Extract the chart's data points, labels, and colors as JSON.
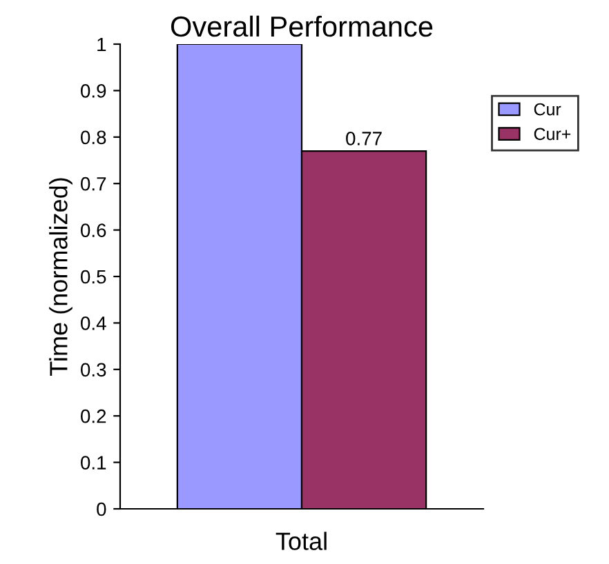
{
  "chart_data": {
    "type": "bar",
    "title": "Overall Performance",
    "ylabel": "Time (normalized)",
    "categories": [
      "Total"
    ],
    "series": [
      {
        "name": "Cur",
        "color": "#9999ff",
        "values": [
          1
        ]
      },
      {
        "name": "Cur+",
        "color": "#993366",
        "values": [
          0.77
        ],
        "value_labels": [
          "0.77"
        ]
      }
    ],
    "ylim": [
      0,
      1
    ],
    "yticks": [
      0,
      0.1,
      0.2,
      0.3,
      0.4,
      0.5,
      0.6,
      0.7,
      0.8,
      0.9,
      1
    ],
    "grid": false,
    "legend": "right"
  }
}
